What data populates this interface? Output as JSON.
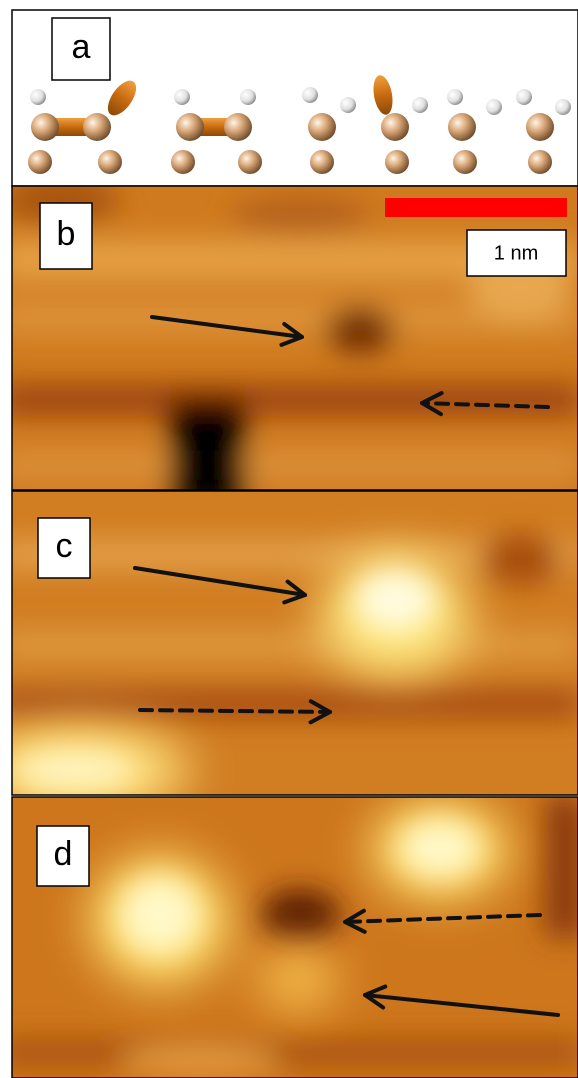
{
  "panels": [
    {
      "label": "a"
    },
    {
      "label": "b"
    },
    {
      "label": "c"
    },
    {
      "label": "d"
    }
  ],
  "scale_bar": {
    "label": "1 nm"
  }
}
